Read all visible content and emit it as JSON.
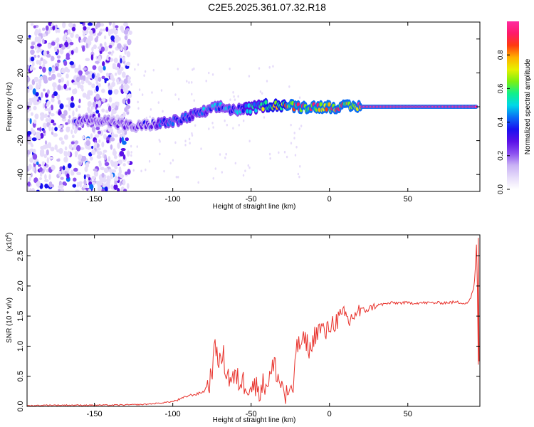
{
  "figure_title": "C2E5.2025.361.07.32.R18",
  "colors": {
    "background": "#ffffff",
    "axis": "#000000",
    "snr_line": "#e8322c",
    "colormap": [
      "#ffffff",
      "#e6dcfa",
      "#c9b2f5",
      "#8c4ff0",
      "#5a10e8",
      "#1a10f0",
      "#0a6cf5",
      "#00d8e8",
      "#10f08a",
      "#7cf010",
      "#e8f000",
      "#ffb000",
      "#ff3a10",
      "#ff1a6a",
      "#ff2aa0"
    ]
  },
  "chart_data": [
    {
      "type": "heatmap",
      "title": "",
      "xlabel": "Height of straight line (km)",
      "ylabel": "Frequency (Hz)",
      "xlim": [
        -193,
        96
      ],
      "ylim": [
        -50,
        50
      ],
      "x_ticks": [
        -150,
        -100,
        -50,
        0,
        50
      ],
      "x_tick_labels": [
        "-150",
        "-100",
        "-50",
        "0",
        "50"
      ],
      "y_ticks": [
        -40,
        -20,
        0,
        20,
        40
      ],
      "y_tick_labels": [
        "-40",
        "-20",
        "0",
        "20",
        "40"
      ],
      "colorbar": {
        "label": "Normalized spectral amplitude",
        "range": [
          0,
          1
        ],
        "ticks": [
          0.0,
          0.2,
          0.4,
          0.6,
          0.8
        ],
        "tick_labels": [
          "0.0",
          "0.2",
          "0.4",
          "0.6",
          "0.8"
        ]
      },
      "ridge": {
        "description": "Frequency of dominant spectral peak vs height",
        "x": [
          -163,
          -150,
          -125,
          -110,
          -100,
          -90,
          -80,
          -70,
          -60,
          -50,
          -40,
          -30,
          -20,
          -10,
          0,
          10,
          20,
          50,
          94
        ],
        "y": [
          -9,
          -7,
          -12,
          -10,
          -9,
          -6,
          -3,
          0,
          -2,
          -1,
          1,
          1,
          0,
          0,
          0,
          0,
          0,
          0,
          0
        ],
        "amplitude": [
          0.35,
          0.3,
          0.3,
          0.4,
          0.5,
          0.45,
          0.5,
          0.55,
          0.5,
          0.6,
          0.75,
          0.85,
          0.95,
          0.95,
          0.95,
          0.95,
          1.0,
          1.0,
          1.0
        ]
      },
      "noise_region": {
        "x_range": [
          -193,
          -127
        ],
        "y_range": [
          -50,
          50
        ],
        "typical_amplitude": 0.15
      }
    },
    {
      "type": "line",
      "title": "",
      "xlabel": "Height of straight line (km)",
      "ylabel": "SNR (10 * v/v)",
      "scale_label": "(x10^4)",
      "scale_base": "(x10",
      "scale_exp": "4",
      "xlim": [
        -193,
        96
      ],
      "ylim": [
        0,
        2.85
      ],
      "x_ticks": [
        -150,
        -100,
        -50,
        0,
        50
      ],
      "x_tick_labels": [
        "-150",
        "-100",
        "-50",
        "0",
        "50"
      ],
      "y_ticks": [
        0.0,
        0.5,
        1.0,
        1.5,
        2.0,
        2.5
      ],
      "y_tick_labels": [
        "0.0",
        "0.5",
        "1.0",
        "1.5",
        "2.0",
        "2.5"
      ],
      "series": [
        {
          "name": "SNR",
          "x": [
            -193,
            -180,
            -160,
            -140,
            -120,
            -110,
            -100,
            -95,
            -90,
            -85,
            -80,
            -76,
            -74,
            -72,
            -70,
            -68,
            -65,
            -60,
            -55,
            -50,
            -45,
            -40,
            -37,
            -35,
            -32,
            -30,
            -28,
            -26,
            -24,
            -23,
            -22,
            -20,
            -18,
            -15,
            -12,
            -10,
            -8,
            -5,
            -2,
            0,
            3,
            6,
            10,
            13,
            16,
            20,
            25,
            30,
            40,
            50,
            60,
            70,
            80,
            88,
            90,
            92,
            93,
            94,
            95
          ],
          "y": [
            0.01,
            0.02,
            0.02,
            0.02,
            0.03,
            0.05,
            0.08,
            0.12,
            0.18,
            0.2,
            0.25,
            0.45,
            0.8,
            1.0,
            0.7,
            0.85,
            0.5,
            0.45,
            0.4,
            0.35,
            0.3,
            0.4,
            0.55,
            0.7,
            0.4,
            0.35,
            0.15,
            0.25,
            0.1,
            0.3,
            0.9,
            1.0,
            1.05,
            1.1,
            0.9,
            1.15,
            1.25,
            1.3,
            1.2,
            1.35,
            1.4,
            1.45,
            1.5,
            1.4,
            1.55,
            1.58,
            1.62,
            1.68,
            1.72,
            1.72,
            1.72,
            1.72,
            1.73,
            1.72,
            1.8,
            1.95,
            2.2,
            2.8,
            0.7
          ]
        }
      ]
    }
  ]
}
